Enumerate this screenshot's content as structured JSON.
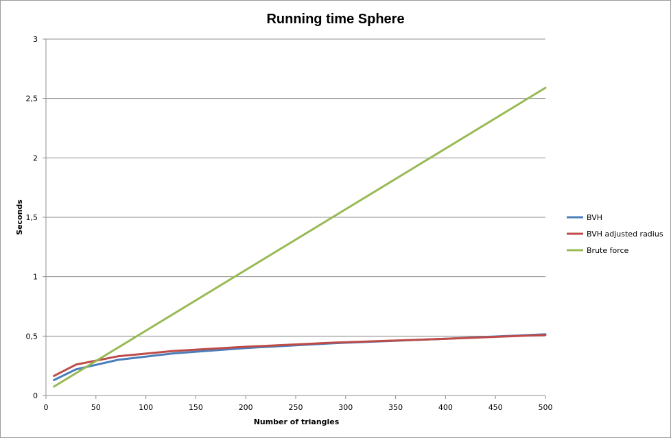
{
  "chart_data": {
    "type": "line",
    "title": "Running time Sphere",
    "xlabel": "Number of triangles",
    "ylabel": "Seconds",
    "xlim": [
      0,
      500
    ],
    "ylim": [
      0,
      3
    ],
    "x_ticks": [
      "0",
      "50",
      "100",
      "150",
      "200",
      "250",
      "300",
      "350",
      "400",
      "450",
      "500"
    ],
    "y_ticks": [
      "0",
      "0,5",
      "1",
      "1,5",
      "2",
      "2,5",
      "3"
    ],
    "grid": "horizontal",
    "legend_position": "right",
    "series": [
      {
        "name": "BVH",
        "color": "#4a7ebb",
        "points": [
          [
            8,
            0.13
          ],
          [
            30,
            0.22
          ],
          [
            72,
            0.3
          ],
          [
            128,
            0.355
          ],
          [
            200,
            0.4
          ],
          [
            288,
            0.44
          ],
          [
            392,
            0.475
          ],
          [
            500,
            0.515
          ]
        ]
      },
      {
        "name": "BVH adjusted radius",
        "color": "#be4b48",
        "points": [
          [
            8,
            0.165
          ],
          [
            30,
            0.26
          ],
          [
            72,
            0.33
          ],
          [
            128,
            0.375
          ],
          [
            200,
            0.41
          ],
          [
            288,
            0.445
          ],
          [
            392,
            0.475
          ],
          [
            500,
            0.51
          ]
        ]
      },
      {
        "name": "Brute force",
        "color": "#98b954",
        "points": [
          [
            8,
            0.075
          ],
          [
            500,
            2.59
          ]
        ]
      }
    ]
  }
}
